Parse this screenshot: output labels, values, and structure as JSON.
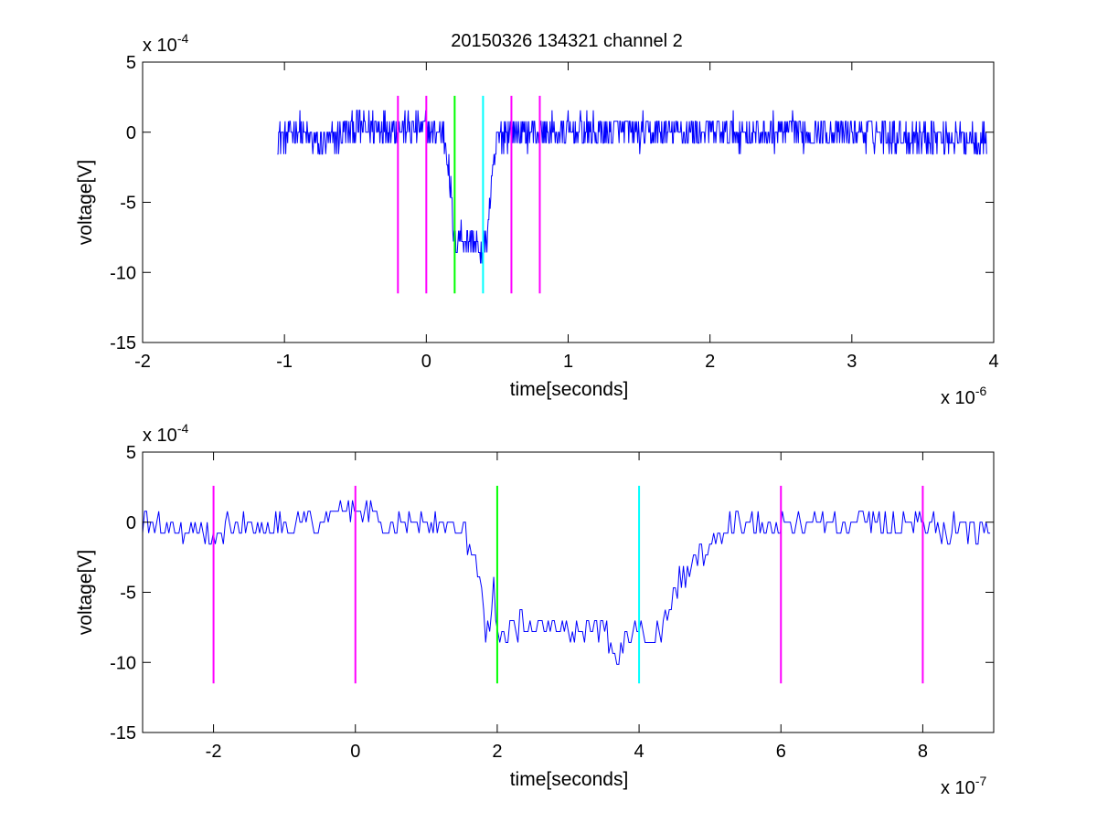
{
  "figure": {
    "title": "20150326 134321 channel 2"
  },
  "colors": {
    "trace": "#0000ff",
    "marker_magenta": "#ff00ff",
    "marker_green": "#00ff00",
    "marker_cyan": "#00ffff",
    "axes": "#000000",
    "background": "#ffffff"
  },
  "chart_data": [
    {
      "type": "line",
      "title": "20150326 134321 channel 2",
      "xlabel": "time[seconds]",
      "ylabel": "voltage[V]",
      "x_multiplier_label": "x 10",
      "x_multiplier_exponent": "-6",
      "y_multiplier_label": "x 10",
      "y_multiplier_exponent": "-4",
      "xlim": [
        -2,
        4
      ],
      "ylim": [
        -15,
        5
      ],
      "xticks": [
        -2,
        -1,
        0,
        1,
        2,
        3,
        4
      ],
      "yticks": [
        -15,
        -10,
        -5,
        0,
        5
      ],
      "xtick_labels": [
        "-2",
        "-1",
        "0",
        "1",
        "2",
        "3",
        "4"
      ],
      "ytick_labels": [
        "-15",
        "-10",
        "-5",
        "0",
        "5"
      ],
      "grid": false,
      "markers": [
        {
          "x": -0.2,
          "color": "magenta"
        },
        {
          "x": 0.0,
          "color": "magenta"
        },
        {
          "x": 0.2,
          "color": "green"
        },
        {
          "x": 0.4,
          "color": "cyan"
        },
        {
          "x": 0.6,
          "color": "magenta"
        },
        {
          "x": 0.8,
          "color": "magenta"
        }
      ],
      "marker_range": [
        -11.5,
        2.6
      ],
      "series": [
        {
          "x_range": [
            -1.05,
            3.95
          ],
          "description_points": [
            [
              -1.05,
              -0.5
            ],
            [
              -0.9,
              0.2
            ],
            [
              -0.75,
              -1.0
            ],
            [
              -0.5,
              0.3
            ],
            [
              -0.3,
              0.4
            ],
            [
              -0.1,
              0.2
            ],
            [
              0.0,
              0.2
            ],
            [
              0.12,
              0.0
            ],
            [
              0.15,
              -1.5
            ],
            [
              0.17,
              -4.0
            ],
            [
              0.19,
              -7.0
            ],
            [
              0.2,
              -8.2
            ],
            [
              0.23,
              -7.2
            ],
            [
              0.26,
              -7.4
            ],
            [
              0.3,
              -7.6
            ],
            [
              0.33,
              -7.8
            ],
            [
              0.36,
              -8.0
            ],
            [
              0.38,
              -9.5
            ],
            [
              0.4,
              -8.2
            ],
            [
              0.42,
              -7.9
            ],
            [
              0.45,
              -5.0
            ],
            [
              0.48,
              -2.0
            ],
            [
              0.5,
              -0.7
            ],
            [
              0.55,
              0.0
            ],
            [
              1.0,
              0.0
            ],
            [
              2.0,
              0.0
            ],
            [
              3.0,
              0.0
            ],
            [
              3.95,
              -0.5
            ]
          ],
          "noise_amplitude": 1.2
        }
      ]
    },
    {
      "type": "line",
      "xlabel": "time[seconds]",
      "ylabel": "voltage[V]",
      "x_multiplier_label": "x 10",
      "x_multiplier_exponent": "-7",
      "y_multiplier_label": "x 10",
      "y_multiplier_exponent": "-4",
      "xlim": [
        -3,
        9
      ],
      "ylim": [
        -15,
        5
      ],
      "xticks": [
        -2,
        0,
        2,
        4,
        6,
        8
      ],
      "yticks": [
        -15,
        -10,
        -5,
        0,
        5
      ],
      "xtick_labels": [
        "-2",
        "0",
        "2",
        "4",
        "6",
        "8"
      ],
      "ytick_labels": [
        "-15",
        "-10",
        "-5",
        "0",
        "5"
      ],
      "grid": false,
      "markers": [
        {
          "x": -2,
          "color": "magenta"
        },
        {
          "x": 0,
          "color": "magenta"
        },
        {
          "x": 2,
          "color": "green"
        },
        {
          "x": 4,
          "color": "cyan"
        },
        {
          "x": 6,
          "color": "magenta"
        },
        {
          "x": 8,
          "color": "magenta"
        }
      ],
      "marker_range": [
        -11.5,
        2.6
      ],
      "series": [
        {
          "x_range": [
            -3,
            8.95
          ],
          "description_points": [
            [
              -3.0,
              0.0
            ],
            [
              -2.2,
              -0.8
            ],
            [
              -2.0,
              -0.6
            ],
            [
              -1.5,
              0.0
            ],
            [
              -0.5,
              0.0
            ],
            [
              0.0,
              1.0
            ],
            [
              0.5,
              -0.3
            ],
            [
              1.0,
              0.0
            ],
            [
              1.5,
              -0.3
            ],
            [
              1.6,
              -1.5
            ],
            [
              1.7,
              -3.0
            ],
            [
              1.75,
              -4.5
            ],
            [
              1.8,
              -6.0
            ],
            [
              1.85,
              -8.2
            ],
            [
              1.9,
              -7.0
            ],
            [
              1.95,
              -5.0
            ],
            [
              2.0,
              -6.8
            ],
            [
              2.05,
              -8.5
            ],
            [
              2.2,
              -7.6
            ],
            [
              2.5,
              -7.2
            ],
            [
              3.0,
              -7.5
            ],
            [
              3.5,
              -7.6
            ],
            [
              3.7,
              -10.3
            ],
            [
              3.8,
              -8.0
            ],
            [
              4.0,
              -7.6
            ],
            [
              4.3,
              -8.3
            ],
            [
              4.4,
              -6.5
            ],
            [
              4.5,
              -5.5
            ],
            [
              4.6,
              -3.8
            ],
            [
              4.8,
              -3.0
            ],
            [
              5.0,
              -1.5
            ],
            [
              5.3,
              0.0
            ],
            [
              6.0,
              -0.3
            ],
            [
              7.0,
              0.0
            ],
            [
              8.0,
              0.0
            ],
            [
              8.95,
              -1.0
            ]
          ],
          "noise_amplitude": 0.9
        }
      ]
    }
  ]
}
